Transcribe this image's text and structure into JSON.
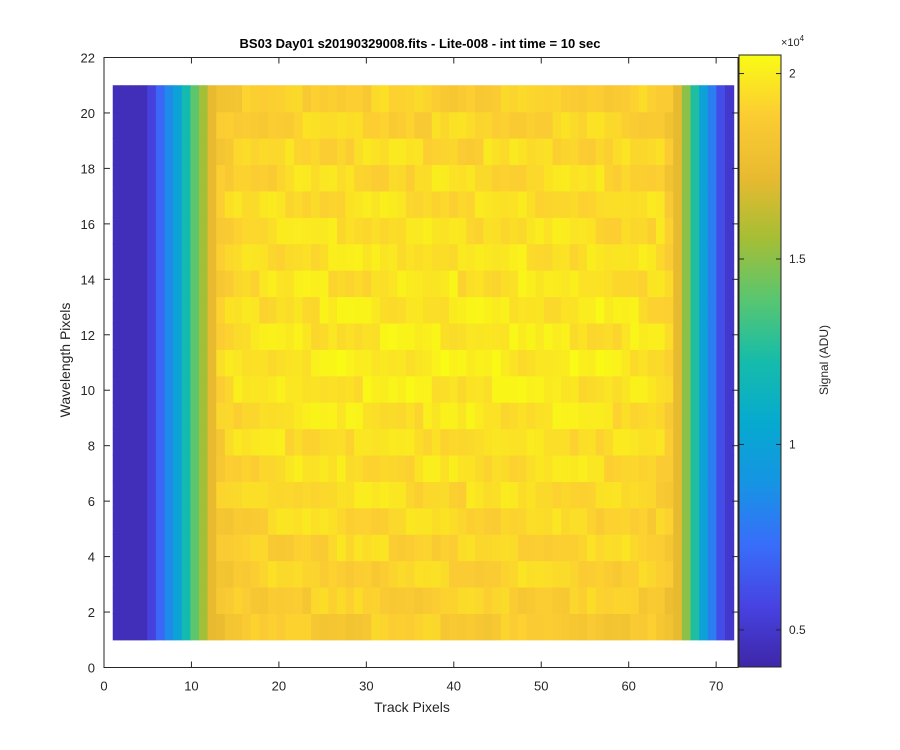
{
  "chart_data": {
    "type": "heatmap",
    "title": "BS03 Day01  s20190329008.fits - Lite-008 - int time = 10 sec",
    "xlabel": "Track Pixels",
    "ylabel": "Wavelength Pixels",
    "xlim": [
      0,
      72.5
    ],
    "ylim": [
      0,
      22
    ],
    "x_ticks": [
      0,
      10,
      20,
      30,
      40,
      50,
      60,
      70
    ],
    "y_ticks": [
      0,
      2,
      4,
      6,
      8,
      10,
      12,
      14,
      16,
      18,
      20,
      22
    ],
    "x_range": [
      1,
      72
    ],
    "y_range": [
      1,
      21
    ],
    "grid": false,
    "colorbar": {
      "label": "Signal (ADU)",
      "exponent_label": "×10",
      "exponent_power": "4",
      "range": [
        0.4,
        2.05
      ],
      "ticks": [
        0.5,
        1,
        1.5,
        2
      ],
      "tick_labels": [
        "0.5",
        "1",
        "1.5",
        "2"
      ],
      "colormap": "parula"
    },
    "column_profile_x10000": [
      0.45,
      0.45,
      0.45,
      0.45,
      0.55,
      0.7,
      0.85,
      1.0,
      1.2,
      1.4,
      1.55,
      1.72,
      1.85,
      1.88,
      1.9,
      1.9,
      1.91,
      1.91,
      1.92,
      1.92,
      1.92,
      1.93,
      1.93,
      1.93,
      1.93,
      1.93,
      1.93,
      1.93,
      1.93,
      1.93,
      1.93,
      1.93,
      1.93,
      1.93,
      1.93,
      1.93,
      1.93,
      1.93,
      1.93,
      1.93,
      1.93,
      1.93,
      1.93,
      1.93,
      1.93,
      1.93,
      1.93,
      1.93,
      1.93,
      1.93,
      1.93,
      1.93,
      1.93,
      1.93,
      1.93,
      1.93,
      1.93,
      1.92,
      1.92,
      1.92,
      1.92,
      1.91,
      1.91,
      1.9,
      1.85,
      1.72,
      1.5,
      1.25,
      1.0,
      0.8,
      0.6,
      0.5
    ],
    "row_offset_x10000": [
      -0.06,
      -0.04,
      -0.02,
      -0.01,
      0.0,
      0.01,
      0.02,
      0.03,
      0.04,
      0.05,
      0.06,
      0.05,
      0.05,
      0.04,
      0.04,
      0.03,
      0.02,
      0.01,
      0.0,
      -0.02,
      -0.03
    ]
  }
}
